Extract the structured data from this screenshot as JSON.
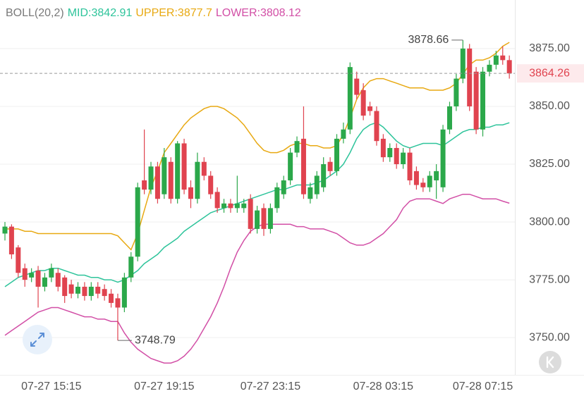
{
  "chart_data": {
    "type": "candlestick",
    "indicator": "BOLL(20,2)",
    "categories": [
      null,
      null,
      null,
      null,
      null,
      null,
      null,
      "07-27 15:15",
      null,
      null,
      null,
      null,
      null,
      null,
      null,
      null,
      null,
      null,
      null,
      null,
      null,
      null,
      null,
      null,
      "07-27 19:15",
      null,
      null,
      null,
      null,
      null,
      null,
      null,
      null,
      null,
      null,
      null,
      null,
      null,
      null,
      null,
      "07-27 23:15",
      null,
      null,
      null,
      null,
      null,
      null,
      null,
      null,
      null,
      null,
      null,
      null,
      null,
      null,
      null,
      null,
      "07-28 03:15",
      null,
      null,
      null,
      null,
      null,
      null,
      null,
      null,
      null,
      null,
      null,
      null,
      null,
      null,
      "07-28 07:15",
      null,
      null,
      null,
      null
    ],
    "open": [
      3795,
      3798,
      3789,
      3780,
      3776,
      3779,
      3772,
      3776,
      3778,
      3776,
      3773,
      3769,
      3772,
      3768,
      3772,
      3771,
      3769,
      3767,
      3763,
      3776,
      3785,
      3818,
      3814,
      3824,
      3812,
      3826,
      3810,
      3834,
      3815,
      3810,
      3826,
      3820,
      3813,
      3806,
      3808,
      3806,
      3806,
      3810,
      3797,
      3806,
      3797,
      3806,
      3812,
      3818,
      3830,
      3836,
      3810,
      3812,
      3815,
      3826,
      3822,
      3836,
      3840,
      3862,
      3857,
      3850,
      3848,
      3836,
      3828,
      3832,
      3825,
      3830,
      3822,
      3817,
      3815,
      3818,
      3815,
      3840,
      3850,
      3862,
      3875,
      3865,
      3840,
      3865,
      3868,
      3872,
      3870
    ],
    "high": [
      3800,
      3799,
      3790,
      3782,
      3780,
      3781,
      3778,
      3782,
      3780,
      3777,
      3775,
      3774,
      3774,
      3774,
      3774,
      3773,
      3771,
      3769,
      3778,
      3787,
      3817,
      3840,
      3826,
      3826,
      3832,
      3828,
      3835,
      3836,
      3818,
      3830,
      3828,
      3822,
      3815,
      3810,
      3810,
      3820,
      3810,
      3812,
      3807,
      3808,
      3808,
      3817,
      3820,
      3832,
      3837,
      3850,
      3817,
      3822,
      3828,
      3828,
      3838,
      3843,
      3869,
      3865,
      3860,
      3852,
      3850,
      3838,
      3834,
      3834,
      3832,
      3832,
      3824,
      3819,
      3822,
      3825,
      3842,
      3852,
      3864,
      3878.66,
      3877,
      3867,
      3867,
      3870,
      3874,
      3876,
      3872
    ],
    "low": [
      3792,
      3784,
      3776,
      3772,
      3774,
      3763,
      3770,
      3774,
      3770,
      3765,
      3767,
      3767,
      3766,
      3766,
      3767,
      3766,
      3763,
      3748.79,
      3761,
      3774,
      3783,
      3812,
      3812,
      3808,
      3810,
      3808,
      3808,
      3812,
      3806,
      3808,
      3818,
      3810,
      3804,
      3804,
      3804,
      3804,
      3804,
      3795,
      3795,
      3794,
      3795,
      3804,
      3810,
      3816,
      3828,
      3810,
      3808,
      3810,
      3813,
      3820,
      3820,
      3834,
      3838,
      3853,
      3844,
      3846,
      3833,
      3826,
      3826,
      3823,
      3823,
      3816,
      3814,
      3813,
      3813,
      3810,
      3813,
      3838,
      3848,
      3860,
      3848,
      3838,
      3837,
      3863,
      3866,
      3868,
      3862
    ],
    "close": [
      3798,
      3786,
      3778,
      3775,
      3778,
      3772,
      3776,
      3780,
      3772,
      3768,
      3769,
      3772,
      3768,
      3772,
      3769,
      3768,
      3765,
      3763,
      3776,
      3785,
      3815,
      3814,
      3824,
      3810,
      3828,
      3810,
      3834,
      3814,
      3810,
      3826,
      3820,
      3812,
      3806,
      3808,
      3806,
      3808,
      3808,
      3797,
      3805,
      3797,
      3806,
      3815,
      3818,
      3830,
      3835,
      3812,
      3815,
      3820,
      3825,
      3822,
      3836,
      3840,
      3867,
      3855,
      3846,
      3848,
      3835,
      3828,
      3832,
      3825,
      3830,
      3818,
      3816,
      3815,
      3820,
      3822,
      3840,
      3850,
      3862,
      3875,
      3850,
      3840,
      3865,
      3868,
      3872,
      3870,
      3864.26
    ],
    "up_color": "#2ba84a",
    "down_color": "#e0434f",
    "series": [
      {
        "name": "MID:",
        "color": "#2ec49b",
        "values": [
          3772,
          3774,
          3776,
          3777,
          3778,
          3779,
          3779,
          3780,
          3780,
          3779,
          3778,
          3777,
          3777,
          3776,
          3776,
          3775,
          3775,
          3774,
          3775,
          3777,
          3779,
          3782,
          3784,
          3786,
          3789,
          3791,
          3793,
          3796,
          3798,
          3800,
          3802,
          3804,
          3805,
          3806,
          3807,
          3808,
          3809,
          3810,
          3811,
          3812,
          3813,
          3814,
          3814,
          3815,
          3816,
          3816,
          3816,
          3817,
          3818,
          3820,
          3822,
          3825,
          3830,
          3836,
          3840,
          3842,
          3843,
          3841,
          3838,
          3835,
          3833,
          3832,
          3833,
          3834,
          3834,
          3834,
          3833,
          3835,
          3837,
          3839,
          3840,
          3840,
          3841,
          3841,
          3842,
          3842,
          3842.91
        ]
      },
      {
        "name": "UPPER:",
        "color": "#e8a912",
        "values": [
          3797,
          3797,
          3797,
          3796,
          3796,
          3795,
          3795,
          3795,
          3795,
          3795,
          3795,
          3795,
          3795,
          3795,
          3795,
          3795,
          3795,
          3794,
          3791,
          3788,
          3795,
          3805,
          3815,
          3822,
          3830,
          3834,
          3838,
          3842,
          3845,
          3847,
          3849,
          3850,
          3850,
          3849,
          3847,
          3845,
          3842,
          3838,
          3834,
          3831,
          3830,
          3830,
          3831,
          3833,
          3834,
          3834,
          3833,
          3833,
          3832,
          3832,
          3833,
          3838,
          3845,
          3853,
          3858,
          3861,
          3862,
          3862,
          3861,
          3860,
          3859,
          3858,
          3858,
          3858,
          3857,
          3857,
          3857,
          3858,
          3860,
          3864,
          3868,
          3870,
          3870,
          3871,
          3873,
          3876,
          3877.7
        ]
      },
      {
        "name": "LOWER:",
        "color": "#d24fa6",
        "values": [
          3751,
          3753,
          3755,
          3757,
          3759,
          3761,
          3762,
          3763,
          3763,
          3762,
          3761,
          3760,
          3759,
          3759,
          3758,
          3758,
          3757,
          3757,
          3752,
          3748,
          3745,
          3743,
          3741,
          3740,
          3739,
          3739,
          3740,
          3742,
          3745,
          3749,
          3754,
          3759,
          3765,
          3772,
          3780,
          3787,
          3792,
          3796,
          3798,
          3799,
          3799,
          3799,
          3799,
          3799,
          3798,
          3798,
          3797,
          3797,
          3797,
          3796,
          3795,
          3793,
          3791,
          3790,
          3790,
          3791,
          3793,
          3795,
          3798,
          3801,
          3806,
          3809,
          3810,
          3810,
          3810,
          3809,
          3808,
          3810,
          3811,
          3812,
          3812,
          3811,
          3810,
          3810,
          3810,
          3809,
          3808.12
        ]
      }
    ],
    "ylim": [
      3734.5,
      3896.0
    ],
    "yticks": [
      {
        "value": 3750,
        "label": "3750.00"
      },
      {
        "value": 3775,
        "label": "3775.00"
      },
      {
        "value": 3800,
        "label": "3800.00"
      },
      {
        "value": 3825,
        "label": "3825.00"
      },
      {
        "value": 3850,
        "label": "3850.00"
      },
      {
        "value": 3875,
        "label": "3875.00"
      }
    ],
    "grid": true,
    "last_price_color": "#e0434f"
  }
}
